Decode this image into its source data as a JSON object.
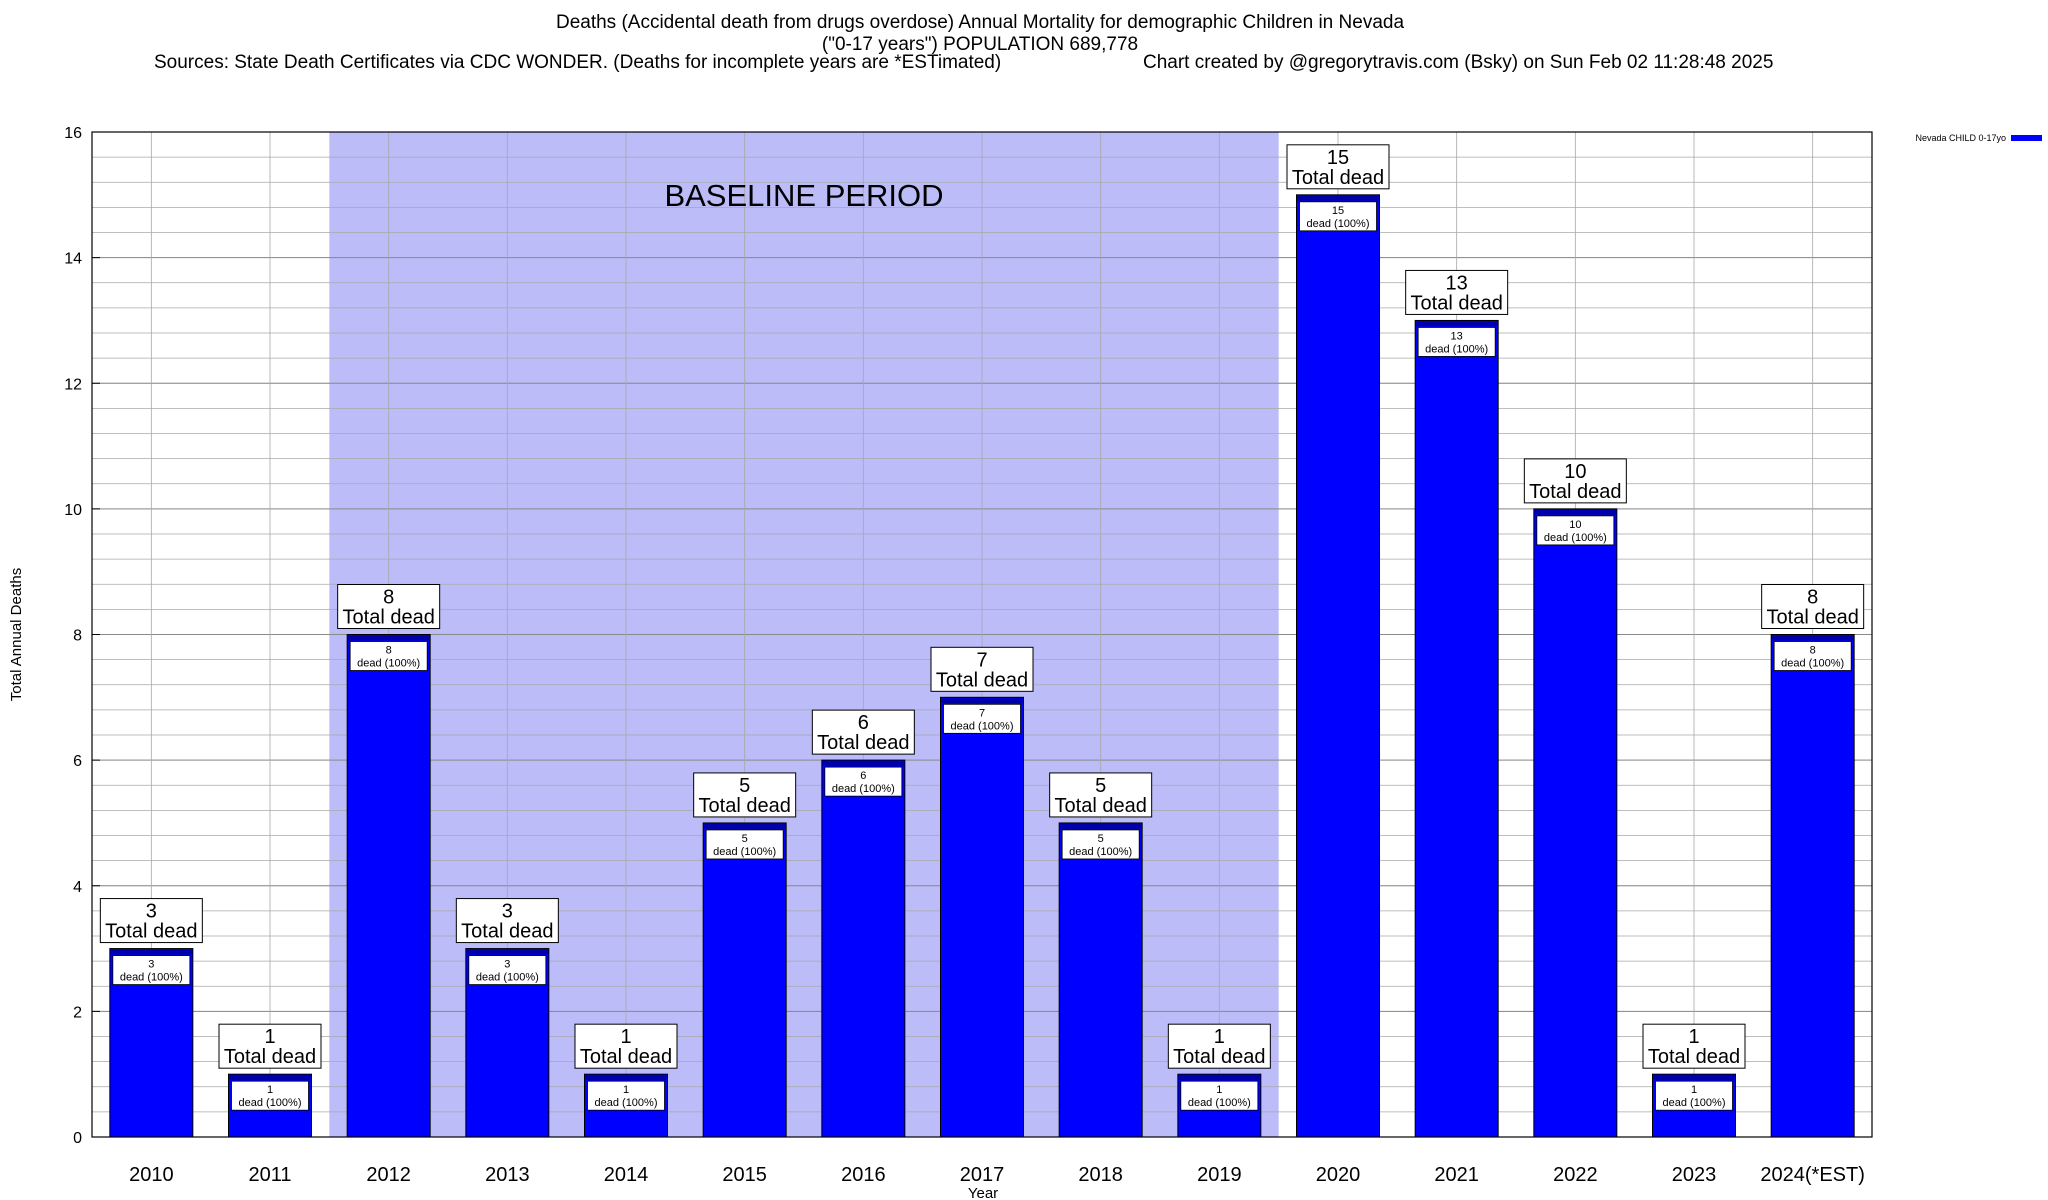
{
  "header": {
    "title_line1": "Deaths (Accidental death from drugs overdose) Annual Mortality for demographic Children in Nevada",
    "title_line2": "(\"0-17 years\") POPULATION 689,778",
    "sources": "Sources: State Death Certificates via CDC WONDER. (Deaths for incomplete years are *ESTimated)",
    "credit": "Chart created by @gregorytravis.com (Bsky) on Sun Feb 02 11:28:48 2025"
  },
  "chart_data": {
    "type": "bar",
    "title": "Deaths (Accidental death from drugs overdose) Annual Mortality for demographic Children in Nevada",
    "xlabel": "Year",
    "ylabel": "Total Annual Deaths",
    "ylim": [
      0,
      16
    ],
    "y_ticks": [
      0,
      2,
      4,
      6,
      8,
      10,
      12,
      14,
      16
    ],
    "y_minor_step": 0.4,
    "grid": true,
    "categories": [
      "2010",
      "2011",
      "2012",
      "2013",
      "2014",
      "2015",
      "2016",
      "2017",
      "2018",
      "2019",
      "2020",
      "2021",
      "2022",
      "2023",
      "2024(*EST)"
    ],
    "series": [
      {
        "name": "Nevada CHILD 0-17yo",
        "color": "#0000ff",
        "values": [
          3,
          1,
          8,
          3,
          1,
          5,
          6,
          7,
          5,
          1,
          15,
          13,
          10,
          1,
          8
        ]
      }
    ],
    "total_label_suffix": "Total dead",
    "inner_label_suffix": "dead (100%)",
    "shaded_region": {
      "label": "BASELINE PERIOD",
      "from_category": "2012",
      "to_category": "2019",
      "color": "#bcbcf8"
    },
    "legend": {
      "position": "top-right",
      "entries": [
        "Nevada CHILD 0-17yo"
      ]
    }
  }
}
